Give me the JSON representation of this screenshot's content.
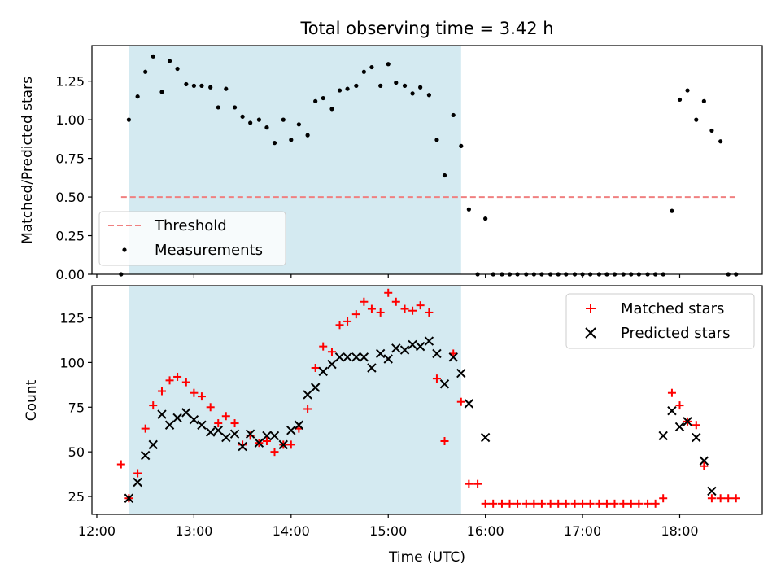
{
  "chart_data": [
    {
      "type": "scatter",
      "title": "Total observing time = 3.42 h",
      "xlabel": "",
      "ylabel": "Matched/Predicted stars",
      "xlim": [
        -0.05,
        6.85
      ],
      "ylim": [
        0,
        1.48
      ],
      "yticks": [
        "0.00",
        "0.25",
        "0.50",
        "0.75",
        "1.00",
        "1.25"
      ],
      "ytick_values": [
        0,
        0.25,
        0.5,
        0.75,
        1.0,
        1.25
      ],
      "shaded_span": [
        0.33,
        3.75
      ],
      "shade_color": "#d4eaf1",
      "threshold": {
        "name": "Threshold",
        "y": 0.5,
        "x": [
          0.25,
          6.6
        ],
        "color": "#f08080"
      },
      "series": [
        {
          "name": "Measurements",
          "color": "#000000",
          "x": [
            0.25,
            0.33,
            0.42,
            0.5,
            0.58,
            0.67,
            0.75,
            0.83,
            0.92,
            1.0,
            1.08,
            1.17,
            1.25,
            1.33,
            1.42,
            1.5,
            1.58,
            1.67,
            1.75,
            1.83,
            1.92,
            2.0,
            2.08,
            2.17,
            2.25,
            2.33,
            2.42,
            2.5,
            2.58,
            2.67,
            2.75,
            2.83,
            2.92,
            3.0,
            3.08,
            3.17,
            3.25,
            3.33,
            3.42,
            3.5,
            3.58,
            3.67,
            3.75,
            3.83,
            3.92,
            4.0,
            4.08,
            4.17,
            4.25,
            4.33,
            4.42,
            4.5,
            4.58,
            4.67,
            4.75,
            4.83,
            4.92,
            5.0,
            5.08,
            5.17,
            5.25,
            5.33,
            5.42,
            5.5,
            5.58,
            5.67,
            5.75,
            5.83,
            5.92,
            6.0,
            6.08,
            6.17,
            6.25,
            6.33,
            6.42,
            6.5,
            6.58
          ],
          "y": [
            0.0,
            1.0,
            1.15,
            1.31,
            1.41,
            1.18,
            1.38,
            1.33,
            1.23,
            1.22,
            1.22,
            1.21,
            1.08,
            1.2,
            1.08,
            1.02,
            0.98,
            1.0,
            0.95,
            0.85,
            1.0,
            0.87,
            0.97,
            0.9,
            1.12,
            1.14,
            1.07,
            1.19,
            1.2,
            1.22,
            1.31,
            1.34,
            1.22,
            1.36,
            1.24,
            1.22,
            1.17,
            1.21,
            1.16,
            0.87,
            0.64,
            1.03,
            0.83,
            0.42,
            0.0,
            0.36,
            0.0,
            0.0,
            0.0,
            0.0,
            0.0,
            0.0,
            0.0,
            0.0,
            0.0,
            0.0,
            0.0,
            0.0,
            0.0,
            0.0,
            0.0,
            0.0,
            0.0,
            0.0,
            0.0,
            0.0,
            0.0,
            0.0,
            0.41,
            1.13,
            1.19,
            1.0,
            1.12,
            0.93,
            0.86,
            0.0,
            0.0
          ]
        }
      ],
      "legend": {
        "placement": "lower-left"
      }
    },
    {
      "type": "scatter",
      "title": "",
      "xlabel": "Time (UTC)",
      "ylabel": "Count",
      "xlim": [
        -0.05,
        6.85
      ],
      "ylim": [
        15,
        143
      ],
      "xticks": [
        "12:00",
        "13:00",
        "14:00",
        "15:00",
        "16:00",
        "17:00",
        "18:00"
      ],
      "xtick_values": [
        0,
        1,
        2,
        3,
        4,
        5,
        6
      ],
      "yticks": [
        "25",
        "50",
        "75",
        "100",
        "125"
      ],
      "ytick_values": [
        25,
        50,
        75,
        100,
        125
      ],
      "shaded_span": [
        0.33,
        3.75
      ],
      "series": [
        {
          "name": "Matched stars",
          "marker": "+",
          "color": "#ff0000",
          "x": [
            0.25,
            0.33,
            0.42,
            0.5,
            0.58,
            0.67,
            0.75,
            0.83,
            0.92,
            1.0,
            1.08,
            1.17,
            1.25,
            1.33,
            1.42,
            1.5,
            1.58,
            1.67,
            1.75,
            1.83,
            1.92,
            2.0,
            2.08,
            2.17,
            2.25,
            2.33,
            2.42,
            2.5,
            2.58,
            2.67,
            2.75,
            2.83,
            2.92,
            3.0,
            3.08,
            3.17,
            3.25,
            3.33,
            3.42,
            3.5,
            3.58,
            3.67,
            3.75,
            3.83,
            3.92,
            4.0,
            4.08,
            4.17,
            4.25,
            4.33,
            4.42,
            4.5,
            4.58,
            4.67,
            4.75,
            4.83,
            4.92,
            5.0,
            5.08,
            5.17,
            5.25,
            5.33,
            5.42,
            5.5,
            5.58,
            5.67,
            5.75,
            5.83,
            5.92,
            6.0,
            6.08,
            6.17,
            6.25,
            6.33,
            6.42,
            6.5,
            6.58
          ],
          "y": [
            43,
            24,
            38,
            63,
            76,
            84,
            90,
            92,
            89,
            83,
            81,
            75,
            66,
            70,
            66,
            54,
            59,
            55,
            56,
            50,
            54,
            54,
            63,
            74,
            97,
            109,
            106,
            121,
            123,
            127,
            134,
            130,
            128,
            139,
            134,
            130,
            129,
            132,
            128,
            91,
            56,
            105,
            78,
            32,
            32,
            21,
            21,
            21,
            21,
            21,
            21,
            21,
            21,
            21,
            21,
            21,
            21,
            21,
            21,
            21,
            21,
            21,
            21,
            21,
            21,
            21,
            21,
            24,
            83,
            76,
            67,
            65,
            42,
            24,
            24,
            24,
            24
          ]
        },
        {
          "name": "Predicted stars",
          "marker": "x",
          "color": "#000000",
          "x": [
            0.33,
            0.42,
            0.5,
            0.58,
            0.67,
            0.75,
            0.83,
            0.92,
            1.0,
            1.08,
            1.17,
            1.25,
            1.33,
            1.42,
            1.5,
            1.58,
            1.67,
            1.75,
            1.83,
            1.92,
            2.0,
            2.08,
            2.17,
            2.25,
            2.33,
            2.42,
            2.5,
            2.58,
            2.67,
            2.75,
            2.83,
            2.92,
            3.0,
            3.08,
            3.17,
            3.25,
            3.33,
            3.42,
            3.5,
            3.58,
            3.67,
            3.75,
            3.83,
            4.0,
            5.83,
            5.92,
            6.0,
            6.08,
            6.17,
            6.25,
            6.33
          ],
          "y": [
            24,
            33,
            48,
            54,
            71,
            65,
            69,
            72,
            68,
            65,
            61,
            62,
            58,
            60,
            53,
            60,
            55,
            59,
            59,
            54,
            62,
            65,
            82,
            86,
            95,
            99,
            103,
            103,
            103,
            103,
            97,
            105,
            102,
            108,
            107,
            110,
            109,
            112,
            105,
            88,
            103,
            94,
            77,
            58,
            59,
            73,
            64,
            67,
            58,
            45,
            28
          ]
        }
      ],
      "legend": {
        "placement": "upper-right"
      }
    }
  ]
}
